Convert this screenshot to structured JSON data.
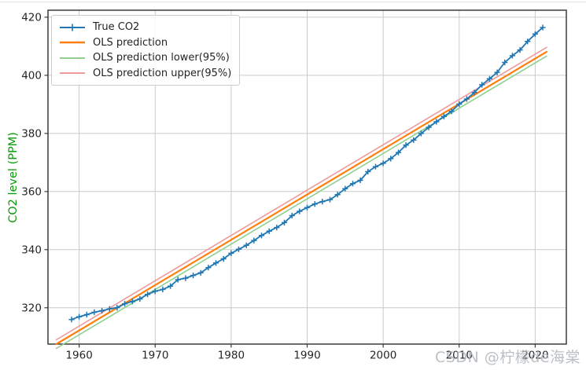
{
  "watermark": {
    "text": "CSDN @柠檬de海棠"
  },
  "chart_data": {
    "type": "line",
    "title": "",
    "xlabel": "",
    "ylabel": "CO2 level (PPM)",
    "ylabel_color": "#089b08",
    "grid": true,
    "legend_position": "upper left",
    "x_ticks": [
      1960,
      1970,
      1980,
      1990,
      2000,
      2010,
      2020
    ],
    "y_ticks": [
      320,
      340,
      360,
      380,
      400,
      420
    ],
    "xlim": [
      1955.9,
      2024.1
    ],
    "ylim": [
      307.5,
      422.4
    ],
    "grid_color": "#cacaca",
    "series": [
      {
        "name": "True CO2",
        "type": "line+marker",
        "marker": "+",
        "color": "#1f77b4",
        "x": [
          1959,
          1960,
          1961,
          1962,
          1963,
          1964,
          1965,
          1966,
          1967,
          1968,
          1969,
          1970,
          1971,
          1972,
          1973,
          1974,
          1975,
          1976,
          1977,
          1978,
          1979,
          1980,
          1981,
          1982,
          1983,
          1984,
          1985,
          1986,
          1987,
          1988,
          1989,
          1990,
          1991,
          1992,
          1993,
          1994,
          1995,
          1996,
          1997,
          1998,
          1999,
          2000,
          2001,
          2002,
          2003,
          2004,
          2005,
          2006,
          2007,
          2008,
          2009,
          2010,
          2011,
          2012,
          2013,
          2014,
          2015,
          2016,
          2017,
          2018,
          2019,
          2020,
          2021
        ],
        "values": [
          315.97,
          316.91,
          317.64,
          318.45,
          318.99,
          319.62,
          320.04,
          321.37,
          322.18,
          323.05,
          324.62,
          325.68,
          326.32,
          327.46,
          329.68,
          330.19,
          331.12,
          332.03,
          333.84,
          335.41,
          336.84,
          338.76,
          340.12,
          341.48,
          343.15,
          344.87,
          346.35,
          347.61,
          349.31,
          351.69,
          353.2,
          354.45,
          355.7,
          356.54,
          357.21,
          358.96,
          360.97,
          362.74,
          363.88,
          366.84,
          368.54,
          369.71,
          371.32,
          373.45,
          375.98,
          377.7,
          379.98,
          382.09,
          384.02,
          385.83,
          387.64,
          390.1,
          391.85,
          394.06,
          396.74,
          398.81,
          401.01,
          404.41,
          406.76,
          408.72,
          411.65,
          414.21,
          416.45
        ]
      },
      {
        "name": "OLS prediction",
        "type": "line",
        "color": "#ff7f0e",
        "x": [
          1957,
          2021.5
        ],
        "values": [
          307.5,
          408.1
        ]
      },
      {
        "name": "OLS prediction lower(95%)",
        "type": "line",
        "color": "#8fcf8f",
        "x": [
          1957,
          2021.5
        ],
        "values": [
          306.0,
          406.6
        ]
      },
      {
        "name": "OLS prediction upper(95%)",
        "type": "line",
        "color": "#ef9a9a",
        "x": [
          1957,
          2021.5
        ],
        "values": [
          309.0,
          409.6
        ]
      }
    ]
  }
}
